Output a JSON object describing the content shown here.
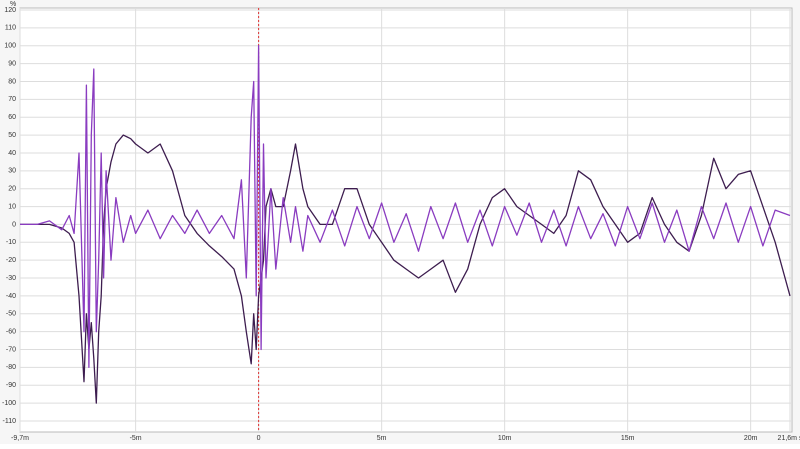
{
  "chart_data": {
    "type": "line",
    "y_unit": "%",
    "xlim": [
      -9.7,
      21.6
    ],
    "ylim": [
      -110,
      120
    ],
    "xticks": [
      {
        "value": -9.7,
        "label": "-9,7m"
      },
      {
        "value": -5,
        "label": "-5m"
      },
      0,
      {
        "value": 5,
        "label": "5m"
      },
      {
        "value": 10,
        "label": "10m"
      },
      {
        "value": 15,
        "label": "15m"
      },
      {
        "value": 20,
        "label": "20m"
      },
      {
        "value": 21.6,
        "label": "21,6m s"
      }
    ],
    "yticks": [
      -110,
      -100,
      -90,
      -80,
      -70,
      -60,
      -50,
      -40,
      -30,
      -20,
      -10,
      0,
      10,
      20,
      30,
      40,
      50,
      60,
      70,
      80,
      90,
      100,
      110,
      120
    ],
    "grid": true,
    "x": [
      -9.7,
      -9,
      -8.5,
      -8,
      -7.7,
      -7.5,
      -7.3,
      -7.1,
      -7,
      -6.9,
      -6.8,
      -6.7,
      -6.6,
      -6.5,
      -6.4,
      -6.3,
      -6.2,
      -6,
      -5.8,
      -5.5,
      -5.2,
      -5,
      -4.5,
      -4,
      -3.5,
      -3,
      -2.5,
      -2,
      -1.5,
      -1,
      -0.7,
      -0.5,
      -0.3,
      -0.2,
      -0.1,
      0,
      0.1,
      0.2,
      0.3,
      0.5,
      0.7,
      1,
      1.3,
      1.5,
      1.8,
      2,
      2.5,
      3,
      3.5,
      4,
      4.5,
      5,
      5.5,
      6,
      6.5,
      7,
      7.5,
      8,
      8.5,
      9,
      9.5,
      10,
      10.5,
      11,
      11.5,
      12,
      12.5,
      13,
      13.5,
      14,
      14.5,
      15,
      15.5,
      16,
      16.5,
      17,
      17.5,
      18,
      18.5,
      19,
      19.5,
      20,
      20.5,
      21,
      21.6
    ],
    "series": [
      {
        "color": "#3d1d4f",
        "values": [
          0,
          0,
          0,
          -2,
          -5,
          -10,
          -40,
          -88,
          -50,
          -70,
          -55,
          -75,
          -100,
          -60,
          -40,
          0,
          20,
          35,
          45,
          50,
          48,
          45,
          40,
          45,
          30,
          5,
          -5,
          -12,
          -18,
          -25,
          -40,
          -60,
          -78,
          -50,
          -70,
          -40,
          -30,
          -20,
          10,
          20,
          10,
          10,
          30,
          45,
          20,
          10,
          0,
          0,
          20,
          20,
          0,
          -10,
          -20,
          -25,
          -30,
          -25,
          -20,
          -38,
          -25,
          0,
          15,
          20,
          10,
          5,
          0,
          -5,
          5,
          30,
          25,
          10,
          0,
          -10,
          -5,
          15,
          0,
          -10,
          -15,
          5,
          37,
          20,
          28,
          30,
          10,
          -10,
          -40
        ]
      },
      {
        "color": "#8a3cc0",
        "values": [
          0,
          0,
          2,
          -3,
          5,
          -5,
          40,
          -60,
          78,
          -80,
          50,
          87,
          -60,
          -20,
          40,
          -30,
          30,
          -20,
          15,
          -10,
          5,
          -5,
          8,
          -8,
          5,
          -5,
          8,
          -5,
          5,
          -8,
          25,
          -30,
          60,
          80,
          -40,
          100,
          -70,
          45,
          -30,
          20,
          -25,
          15,
          -10,
          10,
          -15,
          5,
          -10,
          8,
          -12,
          10,
          -8,
          12,
          -10,
          6,
          -15,
          10,
          -8,
          12,
          -10,
          8,
          -12,
          10,
          -6,
          12,
          -10,
          8,
          -12,
          10,
          -8,
          6,
          -12,
          10,
          -8,
          12,
          -10,
          8,
          -15,
          10,
          -8,
          12,
          -10,
          10,
          -12,
          8,
          5
        ]
      }
    ]
  }
}
